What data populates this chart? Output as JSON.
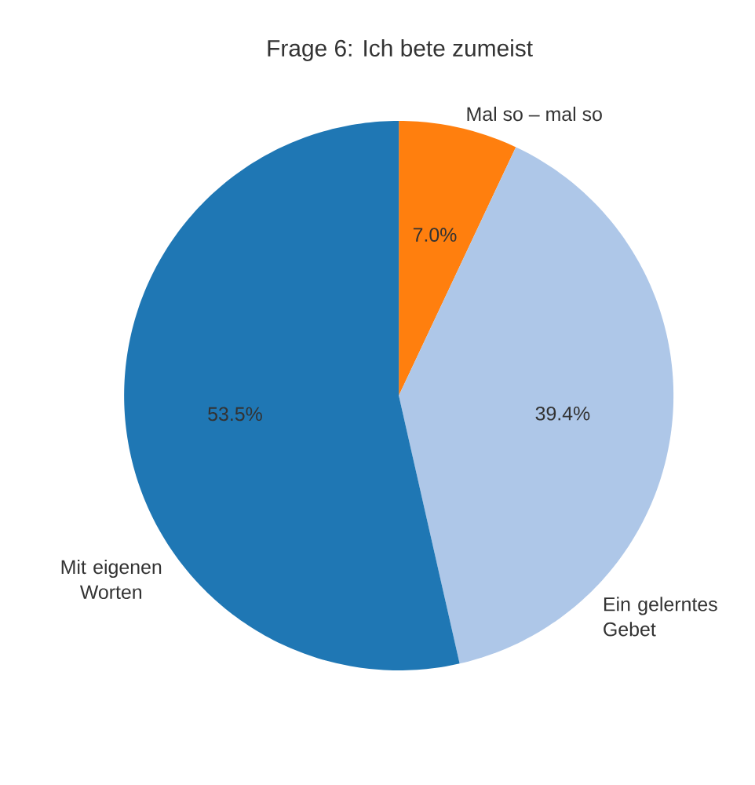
{
  "chart_data": {
    "type": "pie",
    "title": "Frage 6: Ich bete zumeist",
    "categories": [
      "Mal so – mal so",
      "Ein gelerntes Gebet",
      "Mit eigenen Worten"
    ],
    "values": [
      7.0,
      39.4,
      53.5
    ],
    "colors": [
      "#ff7f0e",
      "#aec7e8",
      "#1f77b4"
    ],
    "value_labels": [
      "7.0%",
      "39.4%",
      "53.5%"
    ]
  }
}
